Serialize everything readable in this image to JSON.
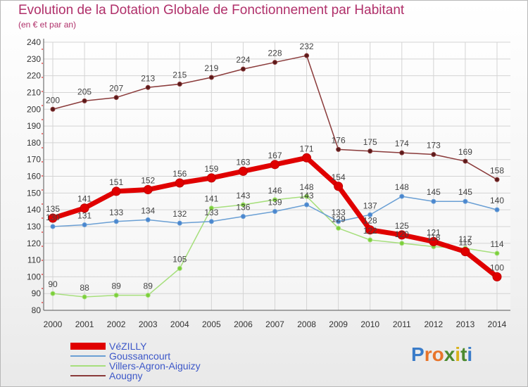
{
  "title": "Evolution de la Dotation Globale de Fonctionnement par Habitant",
  "subtitle": "(en € et par an)",
  "logo": {
    "text": "Proxiti",
    "letters": [
      "P",
      "r",
      "o",
      "x",
      "i",
      "t",
      "i"
    ],
    "colors": [
      "#3a7cc9",
      "#e8742a",
      "#e8742a",
      "#4c8a2f",
      "#d8b21a",
      "#4c8a2f",
      "#3a7cc9"
    ]
  },
  "chart_data": {
    "type": "line",
    "x": [
      "2000",
      "2001",
      "2002",
      "2003",
      "2004",
      "2005",
      "2006",
      "2007",
      "2008",
      "2009",
      "2010",
      "2011",
      "2012",
      "2013",
      "2014"
    ],
    "ylim": [
      80,
      240
    ],
    "yticks": [
      "80",
      "90",
      "100",
      "110",
      "120",
      "130",
      "140",
      "150",
      "160",
      "170",
      "180",
      "190",
      "200",
      "210",
      "220",
      "230",
      "240"
    ],
    "grid": true,
    "legend_position": "bottom-left",
    "series": [
      {
        "name": "VéZILLY",
        "color": "#e00000",
        "marker": "#e00000",
        "width": 7,
        "values": [
          135,
          141,
          151,
          152,
          156,
          159,
          163,
          167,
          171,
          154,
          128,
          125,
          121,
          115,
          100
        ],
        "labels": [
          "135",
          "141",
          "151",
          "152",
          "156",
          "159",
          "163",
          "167",
          "171",
          "154",
          "128",
          "125",
          "121",
          "115",
          "100"
        ]
      },
      {
        "name": "Goussancourt",
        "color": "#6a9fd4",
        "marker": "#4a86cf",
        "width": 1.5,
        "values": [
          130,
          131,
          133,
          134,
          132,
          133,
          136,
          139,
          143,
          133,
          137,
          148,
          145,
          145,
          140
        ],
        "labels": [
          "130",
          "131",
          "133",
          "134",
          "132",
          "133",
          "136",
          "139",
          "143",
          "133",
          "137",
          "148",
          "145",
          "145",
          "140"
        ]
      },
      {
        "name": "Villers-Agron-Aiguizy",
        "color": "#a6df7c",
        "marker": "#7ccf3a",
        "width": 1.5,
        "values": [
          90,
          88,
          89,
          89,
          105,
          141,
          143,
          146,
          148,
          129,
          122,
          120,
          118,
          117,
          114
        ],
        "labels": [
          "90",
          "88",
          "89",
          "89",
          "105",
          "141",
          "143",
          "146",
          "148",
          "129",
          "122",
          "120",
          "118",
          "117",
          "114"
        ]
      },
      {
        "name": "Aougny",
        "color": "#8a3a3a",
        "marker": "#5a1a1a",
        "width": 1.5,
        "values": [
          200,
          205,
          207,
          213,
          215,
          219,
          224,
          228,
          232,
          176,
          175,
          174,
          173,
          169,
          158
        ],
        "labels": [
          "200",
          "205",
          "207",
          "213",
          "215",
          "219",
          "224",
          "228",
          "232",
          "176",
          "175",
          "174",
          "173",
          "169",
          "158"
        ]
      }
    ]
  }
}
